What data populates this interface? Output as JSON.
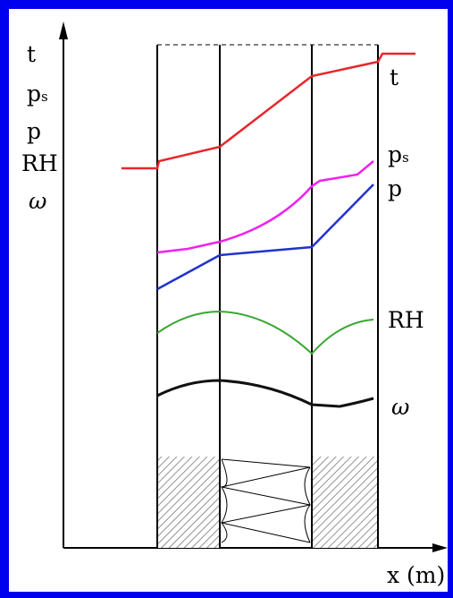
{
  "left_labels": {
    "t": "t",
    "ps_main": "p",
    "ps_sub": "s",
    "p": "p",
    "rh": "RH",
    "omega": "ω"
  },
  "right_labels": {
    "t": "t",
    "ps_main": "p",
    "ps_sub": "s",
    "p": "p",
    "rh": "RH",
    "omega": "ω"
  },
  "x_axis_label": "x (m)",
  "colors": {
    "frame": "#0000ee",
    "t": "#e8262c",
    "ps": "#ee22ee",
    "p": "#2233cc",
    "rh": "#3aa533",
    "omega": "#111111"
  }
}
